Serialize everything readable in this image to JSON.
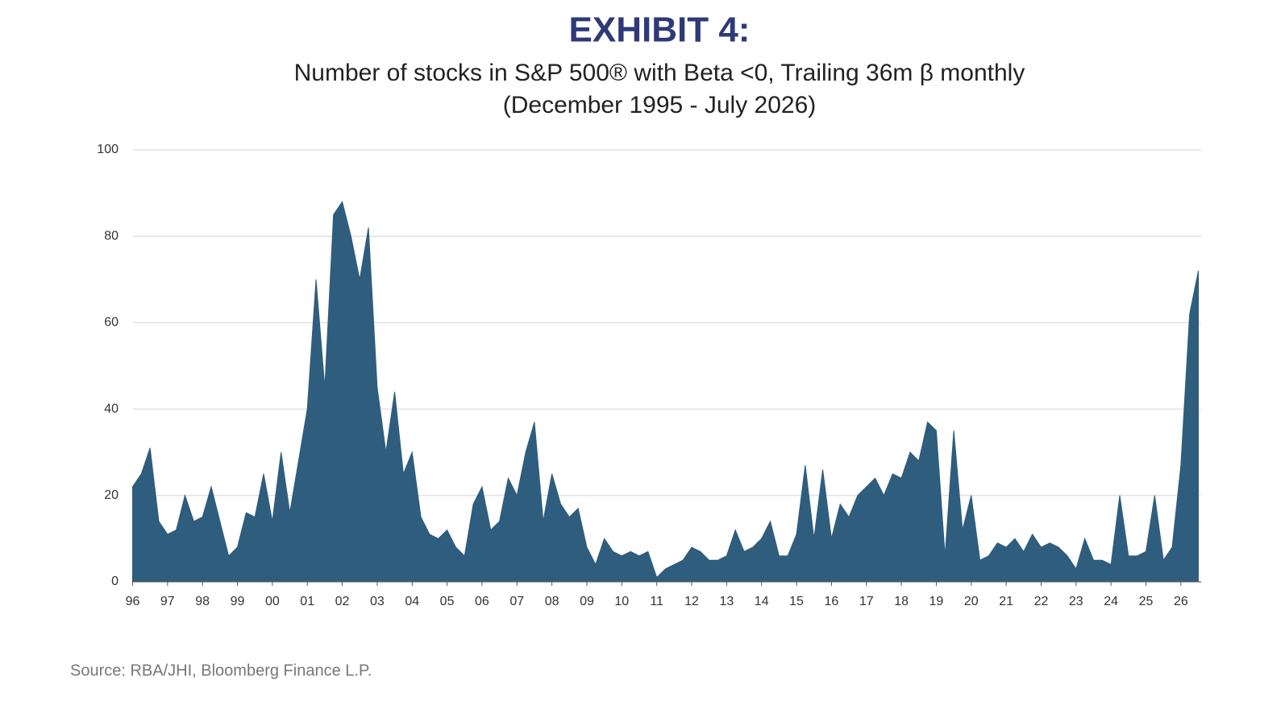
{
  "chart_data": {
    "type": "area",
    "title": "EXHIBIT 4:",
    "subtitle": [
      "Number of stocks in S&P 500® with Beta <0, Trailing 36m β monthly",
      "(December 1995 - July 2026)"
    ],
    "source": "Source: RBA/JHI, Bloomberg Finance L.P.",
    "color": "#2f5d7e",
    "grid": true,
    "xlim": [
      1995.92,
      2026.58
    ],
    "ylim": [
      0,
      100
    ],
    "yticks": [
      0,
      20,
      40,
      60,
      80,
      100
    ],
    "xticks": [
      {
        "value": 1996,
        "label": "96"
      },
      {
        "value": 1997,
        "label": "97"
      },
      {
        "value": 1998,
        "label": "98"
      },
      {
        "value": 1999,
        "label": "99"
      },
      {
        "value": 2000,
        "label": "00"
      },
      {
        "value": 2001,
        "label": "01"
      },
      {
        "value": 2002,
        "label": "02"
      },
      {
        "value": 2003,
        "label": "03"
      },
      {
        "value": 2004,
        "label": "04"
      },
      {
        "value": 2005,
        "label": "05"
      },
      {
        "value": 2006,
        "label": "06"
      },
      {
        "value": 2007,
        "label": "07"
      },
      {
        "value": 2008,
        "label": "08"
      },
      {
        "value": 2009,
        "label": "09"
      },
      {
        "value": 2010,
        "label": "10"
      },
      {
        "value": 2011,
        "label": "11"
      },
      {
        "value": 2012,
        "label": "12"
      },
      {
        "value": 2013,
        "label": "13"
      },
      {
        "value": 2014,
        "label": "14"
      },
      {
        "value": 2015,
        "label": "15"
      },
      {
        "value": 2016,
        "label": "16"
      },
      {
        "value": 2017,
        "label": "17"
      },
      {
        "value": 2018,
        "label": "18"
      },
      {
        "value": 2019,
        "label": "19"
      },
      {
        "value": 2020,
        "label": "20"
      },
      {
        "value": 2021,
        "label": "21"
      },
      {
        "value": 2022,
        "label": "22"
      },
      {
        "value": 2023,
        "label": "23"
      },
      {
        "value": 2024,
        "label": "24"
      },
      {
        "value": 2025,
        "label": "25"
      },
      {
        "value": 2026,
        "label": "26"
      }
    ],
    "x": [
      1996,
      1996.25,
      1996.5,
      1996.75,
      1997,
      1997.25,
      1997.5,
      1997.75,
      1998,
      1998.25,
      1998.5,
      1998.75,
      1999,
      1999.25,
      1999.5,
      1999.75,
      2000,
      2000.25,
      2000.5,
      2000.75,
      2001,
      2001.25,
      2001.5,
      2001.75,
      2002,
      2002.25,
      2002.5,
      2002.75,
      2003,
      2003.25,
      2003.5,
      2003.75,
      2004,
      2004.25,
      2004.5,
      2004.75,
      2005,
      2005.25,
      2005.5,
      2005.75,
      2006,
      2006.25,
      2006.5,
      2006.75,
      2007,
      2007.25,
      2007.5,
      2007.75,
      2008,
      2008.25,
      2008.5,
      2008.75,
      2009,
      2009.25,
      2009.5,
      2009.75,
      2010,
      2010.25,
      2010.5,
      2010.75,
      2011,
      2011.25,
      2011.5,
      2011.75,
      2012,
      2012.25,
      2012.5,
      2012.75,
      2013,
      2013.25,
      2013.5,
      2013.75,
      2014,
      2014.25,
      2014.5,
      2014.75,
      2015,
      2015.25,
      2015.5,
      2015.75,
      2016,
      2016.25,
      2016.5,
      2016.75,
      2017,
      2017.25,
      2017.5,
      2017.75,
      2018,
      2018.25,
      2018.5,
      2018.75,
      2019,
      2019.25,
      2019.5,
      2019.75,
      2020,
      2020.25,
      2020.5,
      2020.75,
      2021,
      2021.25,
      2021.5,
      2021.75,
      2022,
      2022.25,
      2022.5,
      2022.75,
      2023,
      2023.25,
      2023.5,
      2023.75,
      2024,
      2024.25,
      2024.5,
      2024.75,
      2025,
      2025.25,
      2025.5,
      2025.75,
      2026,
      2026.25,
      2026.5
    ],
    "values": [
      22,
      25,
      31,
      14,
      11,
      12,
      20,
      14,
      15,
      22,
      14,
      6,
      8,
      16,
      15,
      25,
      14,
      30,
      16,
      28,
      40,
      70,
      45,
      85,
      88,
      80,
      70,
      82,
      45,
      30,
      44,
      25,
      30,
      15,
      11,
      10,
      12,
      8,
      6,
      18,
      22,
      12,
      14,
      24,
      20,
      30,
      37,
      14,
      25,
      18,
      15,
      17,
      8,
      4,
      10,
      7,
      6,
      7,
      6,
      7,
      1,
      3,
      4,
      5,
      8,
      7,
      5,
      5,
      6,
      12,
      7,
      8,
      10,
      14,
      6,
      6,
      11,
      27,
      10,
      26,
      10,
      18,
      15,
      20,
      22,
      24,
      20,
      25,
      24,
      30,
      28,
      37,
      35,
      6,
      35,
      12,
      20,
      5,
      6,
      9,
      8,
      10,
      7,
      11,
      8,
      9,
      8,
      6,
      3,
      10,
      5,
      5,
      4,
      20,
      6,
      6,
      7,
      20,
      5,
      8,
      27,
      62,
      72
    ]
  }
}
